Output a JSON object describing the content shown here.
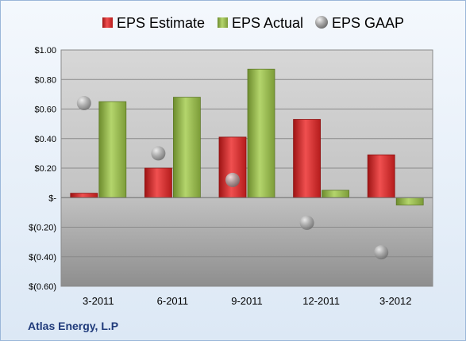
{
  "footer": {
    "company": "Atlas Energy, L.P"
  },
  "colors": {
    "estimate": "#d42a2a",
    "actual": "#8db04a",
    "gaap": "#a0a4a8"
  },
  "chart_data": {
    "type": "bar",
    "categories": [
      "3-2011",
      "6-2011",
      "9-2011",
      "12-2011",
      "3-2012"
    ],
    "series": [
      {
        "name": "EPS Estimate",
        "kind": "bar",
        "values": [
          0.03,
          0.2,
          0.41,
          0.53,
          0.29
        ]
      },
      {
        "name": "EPS Actual",
        "kind": "bar",
        "values": [
          0.65,
          0.68,
          0.87,
          0.05,
          -0.05
        ]
      },
      {
        "name": "EPS GAAP",
        "kind": "point",
        "values": [
          0.64,
          0.3,
          0.12,
          -0.17,
          -0.37
        ]
      }
    ],
    "ylim": [
      -0.6,
      1.0
    ],
    "y_ticks": [
      1.0,
      0.8,
      0.6,
      0.4,
      0.2,
      0,
      -0.2,
      -0.4,
      -0.6
    ],
    "y_tick_labels": [
      "$1.00",
      "$0.80",
      "$0.60",
      "$0.40",
      "$0.20",
      "$-",
      "$(0.20)",
      "$(0.40)",
      "$(0.60)"
    ],
    "legend_position": "top",
    "grid": true
  }
}
